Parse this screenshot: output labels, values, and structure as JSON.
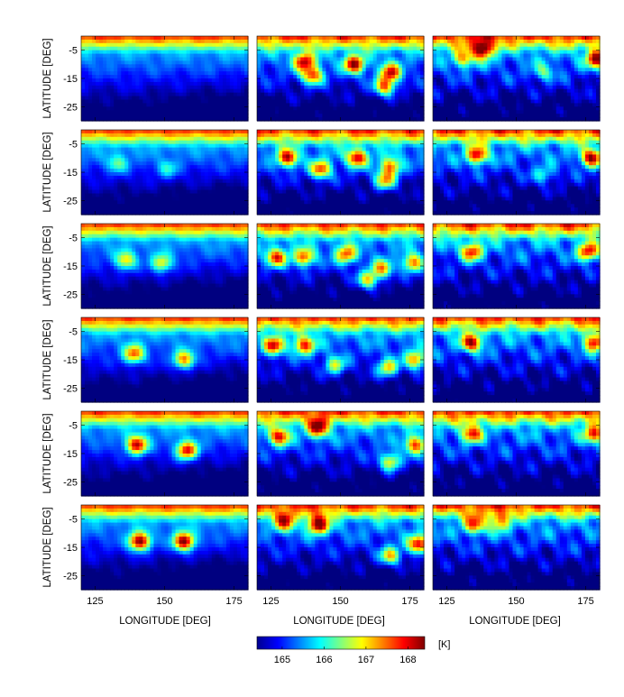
{
  "chart_data": {
    "type": "heatmap",
    "layout": {
      "rows": 6,
      "cols": 3
    },
    "xlabel": "LONGITUDE [DEG]",
    "ylabel": "LATITUDE [DEG]",
    "x_ticks": [
      125,
      150,
      175
    ],
    "y_ticks": [
      -5,
      -15,
      -25
    ],
    "xlim": [
      120,
      180
    ],
    "ylim": [
      -30,
      0
    ],
    "colorbar": {
      "unit": "[K]",
      "ticks": [
        165,
        166,
        167,
        168
      ],
      "range": [
        164.4,
        168.4
      ],
      "colormap": "jet"
    },
    "field_description": "temperature maps (K) over longitude 120-180 deg and latitude 0 to -30 deg",
    "panels": [
      {
        "row": 1,
        "col": 1,
        "vortices": []
      },
      {
        "row": 1,
        "col": 2,
        "vortices": [
          [
            137,
            -9,
            1.5
          ],
          [
            140,
            -14,
            1.4
          ],
          [
            155,
            -10,
            1.6
          ],
          [
            168,
            -13,
            1.5
          ],
          [
            166,
            -18,
            1.4
          ]
        ]
      },
      {
        "row": 1,
        "col": 3,
        "vortices": [
          [
            138,
            -5,
            1.6
          ],
          [
            131,
            -8,
            1.0
          ],
          [
            179,
            -8,
            1.6
          ],
          [
            160,
            -13,
            0.6
          ]
        ]
      },
      {
        "row": 2,
        "col": 1,
        "vortices": [
          [
            133,
            -12,
            0.6
          ],
          [
            151,
            -14,
            0.5
          ]
        ]
      },
      {
        "row": 2,
        "col": 2,
        "vortices": [
          [
            131,
            -10,
            1.5
          ],
          [
            143,
            -14,
            1.4
          ],
          [
            156,
            -10,
            1.5
          ],
          [
            168,
            -13,
            1.3
          ],
          [
            166,
            -18,
            1.2
          ]
        ]
      },
      {
        "row": 2,
        "col": 3,
        "vortices": [
          [
            136,
            -9,
            1.5
          ],
          [
            177,
            -10,
            1.6
          ],
          [
            160,
            -16,
            0.6
          ]
        ]
      },
      {
        "row": 3,
        "col": 1,
        "vortices": [
          [
            136,
            -13,
            1.0
          ],
          [
            149,
            -14,
            1.0
          ]
        ]
      },
      {
        "row": 3,
        "col": 2,
        "vortices": [
          [
            127,
            -12,
            1.4
          ],
          [
            137,
            -12,
            1.3
          ],
          [
            152,
            -11,
            1.3
          ],
          [
            165,
            -16,
            1.2
          ],
          [
            176,
            -14,
            1.3
          ],
          [
            160,
            -20,
            1.2
          ]
        ]
      },
      {
        "row": 3,
        "col": 3,
        "vortices": [
          [
            134,
            -10,
            1.4
          ],
          [
            176,
            -10,
            1.5
          ]
        ]
      },
      {
        "row": 4,
        "col": 1,
        "vortices": [
          [
            139,
            -13,
            1.3
          ],
          [
            157,
            -15,
            1.3
          ]
        ]
      },
      {
        "row": 4,
        "col": 2,
        "vortices": [
          [
            126,
            -10,
            1.4
          ],
          [
            137,
            -10,
            1.4
          ],
          [
            167,
            -18,
            1.2
          ],
          [
            177,
            -15,
            1.3
          ],
          [
            148,
            -17,
            1.0
          ]
        ]
      },
      {
        "row": 4,
        "col": 3,
        "vortices": [
          [
            134,
            -9,
            1.5
          ],
          [
            178,
            -9,
            1.5
          ]
        ]
      },
      {
        "row": 5,
        "col": 1,
        "vortices": [
          [
            140,
            -12,
            1.6
          ],
          [
            158,
            -14,
            1.6
          ]
        ]
      },
      {
        "row": 5,
        "col": 2,
        "vortices": [
          [
            128,
            -9,
            1.4
          ],
          [
            142,
            -6,
            1.5
          ],
          [
            177,
            -12,
            1.4
          ],
          [
            168,
            -18,
            1.2
          ]
        ]
      },
      {
        "row": 5,
        "col": 3,
        "vortices": [
          [
            134,
            -8,
            1.3
          ],
          [
            178,
            -8,
            1.3
          ]
        ]
      },
      {
        "row": 6,
        "col": 1,
        "vortices": [
          [
            141,
            -13,
            1.8
          ],
          [
            157,
            -13,
            1.8
          ]
        ]
      },
      {
        "row": 6,
        "col": 2,
        "vortices": [
          [
            142,
            -7,
            1.7
          ],
          [
            130,
            -6,
            1.3
          ],
          [
            178,
            -14,
            1.6
          ],
          [
            168,
            -18,
            1.2
          ]
        ]
      },
      {
        "row": 6,
        "col": 3,
        "vortices": [
          [
            135,
            -7,
            1.2
          ],
          [
            144,
            -6,
            1.0
          ]
        ]
      }
    ]
  }
}
